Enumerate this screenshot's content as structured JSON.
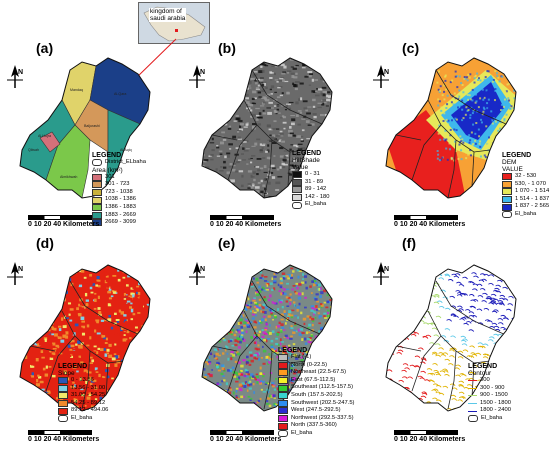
{
  "inset": {
    "label_line1": "kingdom of",
    "label_line2": "saudi arabia"
  },
  "panels": [
    {
      "id": "a",
      "label": "(a)",
      "legend_title": "LEGEND",
      "legend_boundary": "District_ELbaha",
      "legend_value_title": "Area (km²)",
      "classes": [
        {
          "label": "301",
          "color": "#d4707a"
        },
        {
          "label": "301 - 723",
          "color": "#d4985a"
        },
        {
          "label": "723 - 1038",
          "color": "#c9b23c"
        },
        {
          "label": "1038 - 1386",
          "color": "#e0d36a"
        },
        {
          "label": "1386 - 1883",
          "color": "#7bc84a"
        },
        {
          "label": "1883 - 2669",
          "color": "#2a9b8c"
        },
        {
          "label": "2669 - 3099",
          "color": "#1b3f88"
        }
      ],
      "districts": [
        "Mandaq",
        "Al-Qara",
        "Baljurashi",
        "Al-Aqiq",
        "Qilwah",
        "Almikhwah",
        "Al-Hujra"
      ],
      "scale": "0 10 20     40 Kilometers"
    },
    {
      "id": "b",
      "label": "(b)",
      "legend_title": "LEGEND",
      "legend_value_title": "HillShade",
      "legend_value_sub": "Value",
      "classes": [
        {
          "label": "0 - 31",
          "color": "#111111"
        },
        {
          "label": "31 - 89",
          "color": "#555555"
        },
        {
          "label": "89 - 142",
          "color": "#999999"
        },
        {
          "label": "142 - 180",
          "color": "#d8d8d8"
        }
      ],
      "legend_boundary": "El_baha",
      "scale": "0 10 20     40 Kilometers"
    },
    {
      "id": "c",
      "label": "(c)",
      "legend_title": "LEGEND",
      "legend_value_title": "DEM",
      "legend_value_sub": "VALUE",
      "classes": [
        {
          "label": "32 - 530",
          "color": "#e8201e"
        },
        {
          "label": "530, - 1 070",
          "color": "#f7a135"
        },
        {
          "label": "1 070 - 1 514",
          "color": "#e6e85a"
        },
        {
          "label": "1 514 - 1 837",
          "color": "#3fb8ec"
        },
        {
          "label": "1 837 - 2 565",
          "color": "#1829c7"
        }
      ],
      "legend_boundary": "El_baha",
      "scale": "0 10 20     40 Kilometers"
    },
    {
      "id": "d",
      "label": "(d)",
      "legend_title": "LEGEND",
      "legend_value_title": "Slope",
      "classes": [
        {
          "label": "0 - 13.56",
          "color": "#2b56b8"
        },
        {
          "label": "13.56 - 31.00",
          "color": "#7fd0e8"
        },
        {
          "label": "31.00 - 54.25",
          "color": "#f2e86a"
        },
        {
          "label": "54.25 - 89.12",
          "color": "#f08a2c"
        },
        {
          "label": "89.12 - 494.06",
          "color": "#e32212"
        }
      ],
      "legend_boundary": "El_baha",
      "scale": "0 10 20     40 Kilometers"
    },
    {
      "id": "e",
      "label": "(e)",
      "legend_title": "LEGEND",
      "classes": [
        {
          "label": "Flat (-1)",
          "color": "#bdbdbd"
        },
        {
          "label": "North (0-22.5)",
          "color": "#e31a1c"
        },
        {
          "label": "Northeast (22.5-67.5)",
          "color": "#ff9a1f"
        },
        {
          "label": "East (67.5-112.5)",
          "color": "#f5f02a"
        },
        {
          "label": "Southeast (112.5-157.5)",
          "color": "#33cc33"
        },
        {
          "label": "South (157.5-202.5)",
          "color": "#38d4d0"
        },
        {
          "label": "Southwest (202.5-247.5)",
          "color": "#2d8cf0"
        },
        {
          "label": "West (247.5-292.5)",
          "color": "#2b2fd0"
        },
        {
          "label": "Northwest (292.5-337.5)",
          "color": "#d81ad8"
        },
        {
          "label": "North (337.5-360)",
          "color": "#e31a1c"
        }
      ],
      "legend_boundary": "El_baha",
      "scale": "0 10 20     40 Kilometers"
    },
    {
      "id": "f",
      "label": "(f)",
      "legend_title": "LEGEND",
      "legend_value_title": "Contour",
      "classes": [
        {
          "label": "300",
          "color": "#e31a1c"
        },
        {
          "label": "300 - 900",
          "color": "#e0b300"
        },
        {
          "label": "900 - 1500",
          "color": "#a8d96c"
        },
        {
          "label": "1500 - 1800",
          "color": "#5bc8e8"
        },
        {
          "label": "1800 - 2400",
          "color": "#1a1ab8"
        }
      ],
      "legend_boundary": "El_baha",
      "scale": "0 10 20     40 Kilometers"
    }
  ]
}
